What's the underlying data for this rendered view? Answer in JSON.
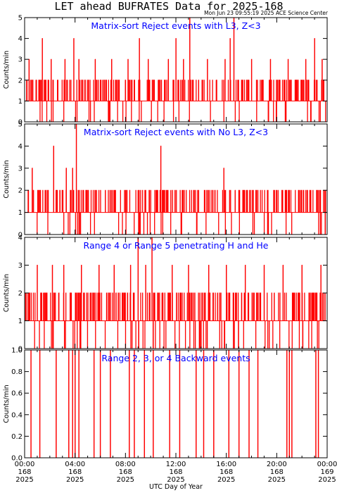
{
  "title": "LET ahead BUFRATES Data for 2025-168",
  "timestamp": "Mon Jun 23 09:55:19 2025 ACE Science Center",
  "xlabel": "UTC Day of Year",
  "colors": {
    "series": "#ff0000",
    "panel_title": "#0000ff",
    "axes": "#000000"
  },
  "x_ticks": [
    {
      "time": "00:00",
      "doy": "168",
      "year": "2025"
    },
    {
      "time": "04:00",
      "doy": "168",
      "year": "2025"
    },
    {
      "time": "08:00",
      "doy": "168",
      "year": "2025"
    },
    {
      "time": "12:00",
      "doy": "168",
      "year": "2025"
    },
    {
      "time": "16:00",
      "doy": "168",
      "year": "2025"
    },
    {
      "time": "20:00",
      "doy": "168",
      "year": "2025"
    },
    {
      "time": "00:00",
      "doy": "169",
      "year": "2025"
    }
  ],
  "chart_data": [
    {
      "type": "line",
      "title": "Matrix-sort Reject events with L3, Z<3",
      "ylabel": "Counts/min",
      "xlim_hours": [
        0,
        24
      ],
      "ylim": [
        0,
        5
      ],
      "y_ticks": [
        "0",
        "1",
        "2",
        "3",
        "4",
        "5"
      ],
      "base_level": 1,
      "spikes": [
        {
          "hour": 0.35,
          "value": 3
        },
        {
          "hour": 0.9,
          "value": 2
        },
        {
          "hour": 1.4,
          "value": 4
        },
        {
          "hour": 2.1,
          "value": 3
        },
        {
          "hour": 2.6,
          "value": 2
        },
        {
          "hour": 3.2,
          "value": 3
        },
        {
          "hour": 3.9,
          "value": 4
        },
        {
          "hour": 4.3,
          "value": 3
        },
        {
          "hour": 5.0,
          "value": 2
        },
        {
          "hour": 5.6,
          "value": 3
        },
        {
          "hour": 6.2,
          "value": 2
        },
        {
          "hour": 6.9,
          "value": 3
        },
        {
          "hour": 7.5,
          "value": 2
        },
        {
          "hour": 8.2,
          "value": 3
        },
        {
          "hour": 9.1,
          "value": 4
        },
        {
          "hour": 9.8,
          "value": 3
        },
        {
          "hour": 10.6,
          "value": 2
        },
        {
          "hour": 11.4,
          "value": 3
        },
        {
          "hour": 12.0,
          "value": 4
        },
        {
          "hour": 12.6,
          "value": 3
        },
        {
          "hour": 13.1,
          "value": 5
        },
        {
          "hour": 13.8,
          "value": 2
        },
        {
          "hour": 14.5,
          "value": 3
        },
        {
          "hour": 15.2,
          "value": 2
        },
        {
          "hour": 15.9,
          "value": 3
        },
        {
          "hour": 16.3,
          "value": 4
        },
        {
          "hour": 16.6,
          "value": 5
        },
        {
          "hour": 17.3,
          "value": 2
        },
        {
          "hour": 18.0,
          "value": 3
        },
        {
          "hour": 18.8,
          "value": 2
        },
        {
          "hour": 19.5,
          "value": 3
        },
        {
          "hour": 20.2,
          "value": 2
        },
        {
          "hour": 20.9,
          "value": 3
        },
        {
          "hour": 21.6,
          "value": 2
        },
        {
          "hour": 22.3,
          "value": 3
        },
        {
          "hour": 23.0,
          "value": 4
        },
        {
          "hour": 23.6,
          "value": 3
        }
      ]
    },
    {
      "type": "line",
      "title": "Matrix-sort Reject events with No L3, Z<3",
      "ylabel": "Counts/min",
      "xlim_hours": [
        0,
        24
      ],
      "ylim": [
        0,
        5
      ],
      "y_ticks": [
        "0",
        "1",
        "2",
        "3",
        "4",
        "5"
      ],
      "base_level": 1,
      "spikes": [
        {
          "hour": 0.3,
          "value": 2
        },
        {
          "hour": 0.6,
          "value": 3
        },
        {
          "hour": 1.1,
          "value": 2
        },
        {
          "hour": 1.7,
          "value": 2
        },
        {
          "hour": 2.3,
          "value": 4
        },
        {
          "hour": 2.8,
          "value": 2
        },
        {
          "hour": 3.3,
          "value": 3
        },
        {
          "hour": 3.8,
          "value": 3
        },
        {
          "hour": 4.1,
          "value": 5
        },
        {
          "hour": 4.9,
          "value": 2
        },
        {
          "hour": 5.7,
          "value": 2
        },
        {
          "hour": 6.4,
          "value": 2
        },
        {
          "hour": 7.2,
          "value": 2
        },
        {
          "hour": 8.1,
          "value": 2
        },
        {
          "hour": 9.0,
          "value": 2
        },
        {
          "hour": 9.9,
          "value": 2
        },
        {
          "hour": 10.8,
          "value": 4
        },
        {
          "hour": 11.6,
          "value": 2
        },
        {
          "hour": 12.5,
          "value": 2
        },
        {
          "hour": 13.4,
          "value": 2
        },
        {
          "hour": 14.3,
          "value": 2
        },
        {
          "hour": 15.1,
          "value": 2
        },
        {
          "hour": 15.8,
          "value": 3
        },
        {
          "hour": 16.7,
          "value": 2
        },
        {
          "hour": 17.6,
          "value": 2
        },
        {
          "hour": 18.4,
          "value": 2
        },
        {
          "hour": 19.3,
          "value": 2
        },
        {
          "hour": 20.1,
          "value": 2
        },
        {
          "hour": 21.0,
          "value": 2
        },
        {
          "hour": 21.9,
          "value": 2
        },
        {
          "hour": 22.7,
          "value": 2
        },
        {
          "hour": 23.4,
          "value": 2
        }
      ]
    },
    {
      "type": "line",
      "title": "Range 4 or Range 5 penetrating H and He",
      "ylabel": "Counts/min",
      "xlim_hours": [
        0,
        24
      ],
      "ylim": [
        0,
        4
      ],
      "y_ticks": [
        "0",
        "1",
        "2",
        "3",
        "4"
      ],
      "base_level": 1,
      "spikes": [
        {
          "hour": 0.4,
          "value": 2
        },
        {
          "hour": 1.0,
          "value": 3
        },
        {
          "hour": 1.5,
          "value": 2
        },
        {
          "hour": 2.2,
          "value": 3
        },
        {
          "hour": 2.7,
          "value": 2
        },
        {
          "hour": 3.1,
          "value": 3
        },
        {
          "hour": 3.7,
          "value": 2
        },
        {
          "hour": 4.5,
          "value": 3
        },
        {
          "hour": 5.2,
          "value": 2
        },
        {
          "hour": 5.9,
          "value": 3
        },
        {
          "hour": 6.5,
          "value": 2
        },
        {
          "hour": 7.1,
          "value": 3
        },
        {
          "hour": 7.8,
          "value": 2
        },
        {
          "hour": 8.4,
          "value": 3
        },
        {
          "hour": 9.0,
          "value": 4
        },
        {
          "hour": 9.6,
          "value": 3
        },
        {
          "hour": 10.1,
          "value": 4
        },
        {
          "hour": 10.9,
          "value": 2
        },
        {
          "hour": 11.7,
          "value": 3
        },
        {
          "hour": 12.4,
          "value": 2
        },
        {
          "hour": 13.0,
          "value": 3
        },
        {
          "hour": 13.9,
          "value": 2
        },
        {
          "hour": 14.6,
          "value": 3
        },
        {
          "hour": 15.3,
          "value": 2
        },
        {
          "hour": 16.0,
          "value": 3
        },
        {
          "hour": 16.8,
          "value": 2
        },
        {
          "hour": 17.5,
          "value": 3
        },
        {
          "hour": 18.2,
          "value": 2
        },
        {
          "hour": 19.0,
          "value": 3
        },
        {
          "hour": 19.8,
          "value": 2
        },
        {
          "hour": 20.5,
          "value": 3
        },
        {
          "hour": 21.3,
          "value": 2
        },
        {
          "hour": 22.0,
          "value": 3
        },
        {
          "hour": 22.8,
          "value": 2
        },
        {
          "hour": 23.5,
          "value": 3
        }
      ]
    },
    {
      "type": "line",
      "title": "Range 2, 3, or 4 Backward events",
      "ylabel": "Counts/min",
      "xlim_hours": [
        0,
        24
      ],
      "ylim": [
        0,
        1
      ],
      "y_ticks": [
        "0.0",
        "0.2",
        "0.4",
        "0.6",
        "0.8",
        "1.0"
      ],
      "base_level": 0,
      "spikes": [
        {
          "hour": 0.5,
          "value": 1
        },
        {
          "hour": 1.2,
          "value": 1
        },
        {
          "hour": 2.5,
          "value": 1
        },
        {
          "hour": 3.5,
          "value": 1
        },
        {
          "hour": 3.8,
          "value": 1
        },
        {
          "hour": 4.0,
          "value": 1
        },
        {
          "hour": 4.3,
          "value": 1
        },
        {
          "hour": 5.5,
          "value": 1
        },
        {
          "hour": 6.0,
          "value": 1
        },
        {
          "hour": 6.8,
          "value": 1
        },
        {
          "hour": 8.3,
          "value": 1
        },
        {
          "hour": 8.7,
          "value": 1
        },
        {
          "hour": 9.5,
          "value": 1
        },
        {
          "hour": 10.2,
          "value": 1
        },
        {
          "hour": 11.5,
          "value": 1
        },
        {
          "hour": 12.3,
          "value": 1
        },
        {
          "hour": 13.6,
          "value": 1
        },
        {
          "hour": 14.2,
          "value": 1
        },
        {
          "hour": 15.0,
          "value": 1
        },
        {
          "hour": 16.2,
          "value": 1
        },
        {
          "hour": 17.0,
          "value": 1
        },
        {
          "hour": 17.8,
          "value": 1
        },
        {
          "hour": 18.5,
          "value": 1
        },
        {
          "hour": 20.8,
          "value": 1
        },
        {
          "hour": 21.0,
          "value": 1
        },
        {
          "hour": 21.2,
          "value": 1
        },
        {
          "hour": 23.1,
          "value": 1
        },
        {
          "hour": 23.3,
          "value": 1
        }
      ]
    }
  ]
}
